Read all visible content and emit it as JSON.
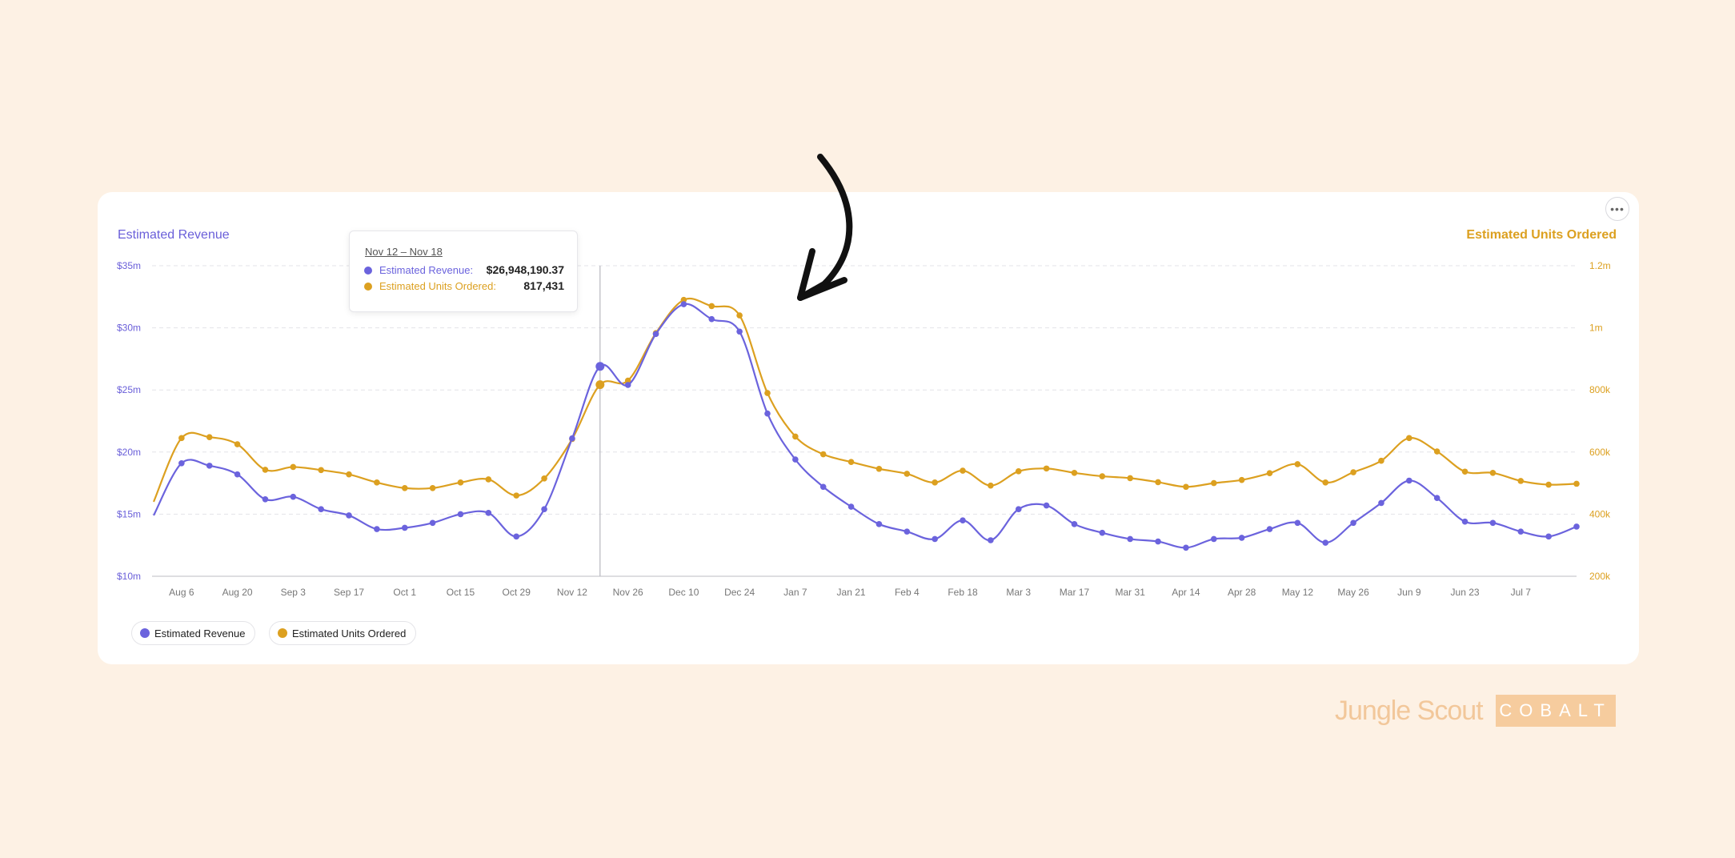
{
  "chart_data": {
    "type": "line",
    "left_axis_title": "Estimated Revenue",
    "right_axis_title": "Estimated Units Ordered",
    "x_ticks": [
      "Aug 6",
      "Aug 20",
      "Sep 3",
      "Sep 17",
      "Oct 1",
      "Oct 15",
      "Oct 29",
      "Nov 12",
      "Nov 26",
      "Dec 10",
      "Dec 24",
      "Jan 7",
      "Jan 21",
      "Feb 4",
      "Feb 18",
      "Mar 3",
      "Mar 17",
      "Mar 31",
      "Apr 14",
      "Apr 28",
      "May 12",
      "May 26",
      "Jun 9",
      "Jun 23",
      "Jul 7"
    ],
    "y_left_ticks": [
      "$10m",
      "$15m",
      "$20m",
      "$25m",
      "$30m",
      "$35m"
    ],
    "y_left_range": [
      10,
      35
    ],
    "y_right_ticks": [
      "200k",
      "400k",
      "600k",
      "800k",
      "1m",
      "1.2m"
    ],
    "y_right_range": [
      200000,
      1200000
    ],
    "grid": true,
    "series": [
      {
        "name": "Estimated Revenue",
        "color": "#6b63dd",
        "axis": "left",
        "unit": "$m",
        "values": [
          14.9,
          19.1,
          18.9,
          18.2,
          16.2,
          16.4,
          15.4,
          14.9,
          13.8,
          13.9,
          14.3,
          15.0,
          15.1,
          13.2,
          15.4,
          21.1,
          26.9,
          25.4,
          29.5,
          31.9,
          30.7,
          29.7,
          23.1,
          19.4,
          17.2,
          15.6,
          14.2,
          13.6,
          13.0,
          14.5,
          12.9,
          15.4,
          15.7,
          14.2,
          13.5,
          13.0,
          12.8,
          12.3,
          13.0,
          13.1,
          13.8,
          14.3,
          12.7,
          14.3,
          15.9,
          17.7,
          16.3,
          14.4,
          14.3,
          13.6,
          13.2,
          14.0
        ]
      },
      {
        "name": "Estimated Units Ordered",
        "color": "#dca020",
        "axis": "right",
        "unit": "units",
        "values": [
          440000,
          645000,
          648000,
          625000,
          543000,
          552000,
          542000,
          528000,
          502000,
          484000,
          484000,
          502000,
          512000,
          460000,
          515000,
          642000,
          817000,
          830000,
          983000,
          1090000,
          1070000,
          1040000,
          790000,
          650000,
          593000,
          568000,
          546000,
          530000,
          502000,
          540000,
          492000,
          538000,
          547000,
          533000,
          522000,
          516000,
          503000,
          488000,
          500000,
          510000,
          532000,
          561000,
          502000,
          535000,
          572000,
          645000,
          602000,
          537000,
          533000,
          507000,
          495000,
          498000
        ]
      }
    ],
    "tooltip": {
      "title": "Nov 12 – Nov 18",
      "index": 16,
      "rows": [
        {
          "label": "Estimated Revenue:",
          "value": "$26,948,190.37",
          "color": "#6b63dd"
        },
        {
          "label": "Estimated Units Ordered:",
          "value": "817,431",
          "color": "#dca020"
        }
      ]
    }
  },
  "legend": [
    {
      "label": "Estimated Revenue",
      "color": "#6b63dd"
    },
    {
      "label": "Estimated Units Ordered",
      "color": "#dca020"
    }
  ],
  "menu_icon": "more-horizontal-icon",
  "menu_glyph": "•••",
  "brand": {
    "name": "Jungle Scout",
    "product": "COBALT"
  }
}
